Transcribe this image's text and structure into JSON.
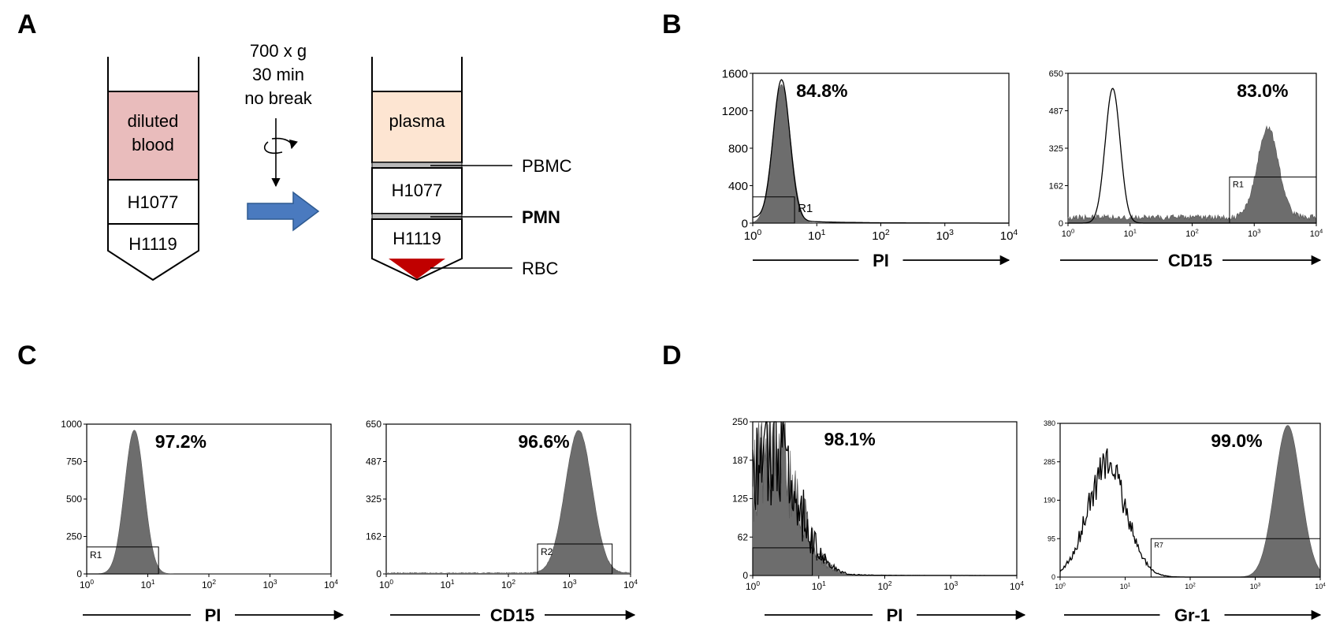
{
  "panel_labels": {
    "a": "A",
    "b": "B",
    "c": "C",
    "d": "D"
  },
  "schematic": {
    "left_tube": {
      "top_layer": [
        "diluted",
        "blood"
      ],
      "middle_layer": "H1077",
      "bottom_layer": "H1119"
    },
    "centrifuge": {
      "lines": [
        "700 x g",
        "30 min",
        "no break"
      ]
    },
    "right_tube": {
      "top_layer": "plasma",
      "middle_layer": "H1077",
      "bottom_layer": "H1119"
    },
    "callouts": {
      "pbmc": "PBMC",
      "pmn": "PMN",
      "rbc": "RBC"
    },
    "colors": {
      "blood": "#e9bcbc",
      "plasma": "#fde5d2",
      "interphase": "#b8b8b8",
      "rbc": "#c00000",
      "arrow": "#4a7abf",
      "arrow_edge": "#2e5a91"
    }
  },
  "chart_data": [
    {
      "id": "B-PI",
      "type": "area",
      "axis_name": "PI",
      "x_scale": "log",
      "xlim": [
        1,
        10000
      ],
      "ylim": [
        0,
        1600
      ],
      "yticks": [
        "0",
        "400",
        "800",
        "1200",
        "1600"
      ],
      "percent": "84.8%",
      "gate": {
        "label": "R1",
        "x": [
          1,
          4.5
        ],
        "y": [
          0,
          280
        ]
      },
      "filled": {
        "center_log": 0.45,
        "sigma": 0.14,
        "peak": 1480
      },
      "outline": {
        "center_log": 0.45,
        "sigma": 0.13,
        "peak": 1500,
        "tail": 60
      }
    },
    {
      "id": "B-CD15",
      "type": "area",
      "axis_name": "CD15",
      "x_scale": "log",
      "xlim": [
        1,
        10000
      ],
      "ylim": [
        0,
        650
      ],
      "yticks": [
        "0",
        "162",
        "325",
        "487",
        "650"
      ],
      "percent": "83.0%",
      "gate": {
        "label": "R1",
        "x": [
          400,
          10000
        ],
        "y": [
          0,
          200
        ]
      },
      "filled": {
        "center_log": 3.22,
        "sigma": 0.17,
        "peak": 390,
        "baseline": 25
      },
      "outline": {
        "center_log": 0.72,
        "sigma": 0.12,
        "peak": 585
      }
    },
    {
      "id": "C-PI",
      "type": "area",
      "axis_name": "PI",
      "x_scale": "log",
      "xlim": [
        1,
        10000
      ],
      "ylim": [
        0,
        1000
      ],
      "yticks": [
        "0",
        "250",
        "500",
        "750",
        "1000"
      ],
      "percent": "97.2%",
      "gate": {
        "label": "R1",
        "x": [
          1,
          15
        ],
        "y": [
          0,
          180
        ]
      },
      "filled": {
        "center_log": 0.78,
        "sigma": 0.16,
        "peak": 960
      },
      "outline": null
    },
    {
      "id": "C-CD15",
      "type": "area",
      "axis_name": "CD15",
      "x_scale": "log",
      "xlim": [
        1,
        10000
      ],
      "ylim": [
        0,
        650
      ],
      "yticks": [
        "0",
        "162",
        "325",
        "487",
        "650"
      ],
      "percent": "96.6%",
      "gate": {
        "label": "R2",
        "x": [
          300,
          5000
        ],
        "y": [
          0,
          130
        ]
      },
      "filled": {
        "center_log": 3.15,
        "sigma": 0.22,
        "peak": 620,
        "baseline": 4
      },
      "outline": null
    },
    {
      "id": "D-PI",
      "type": "area",
      "axis_name": "PI",
      "x_scale": "log",
      "xlim": [
        1,
        10000
      ],
      "ylim": [
        0,
        250
      ],
      "yticks": [
        "0",
        "62",
        "125",
        "187",
        "250"
      ],
      "percent": "98.1%",
      "gate": {
        "label": "R1",
        "x": [
          1,
          8
        ],
        "y": [
          0,
          45
        ]
      },
      "filled": {
        "center_log": 0.3,
        "sigma": 0.38,
        "peak": 205,
        "noise": 0.45
      },
      "outline": {
        "center_log": 0.3,
        "sigma": 0.38,
        "peak": 210,
        "noise": 0.5,
        "tail": 6
      }
    },
    {
      "id": "D-Gr1",
      "type": "area",
      "axis_name": "Gr-1",
      "x_scale": "log",
      "xlim": [
        1,
        10000
      ],
      "ylim": [
        0,
        380
      ],
      "yticks": [
        "0",
        "95",
        "190",
        "285",
        "380"
      ],
      "percent": "99.0%",
      "gate": {
        "label": "R7",
        "x": [
          25,
          10000
        ],
        "y": [
          0,
          95
        ]
      },
      "filled": {
        "center_log": 3.5,
        "sigma": 0.2,
        "peak": 375
      },
      "outline": {
        "center_log": 0.72,
        "sigma": 0.3,
        "peak": 270,
        "noise": 0.18
      }
    }
  ]
}
